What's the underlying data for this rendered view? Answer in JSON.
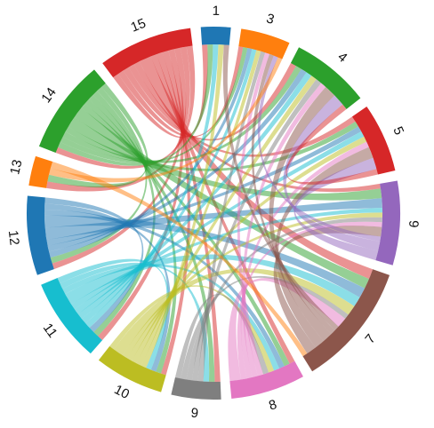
{
  "chart_data": {
    "type": "chord",
    "segments": [
      {
        "label": "1",
        "color": "#1f77b4",
        "value": 6
      },
      {
        "label": "3",
        "color": "#ff7f0e",
        "value": 10
      },
      {
        "label": "4",
        "color": "#2ca02c",
        "value": 16
      },
      {
        "label": "5",
        "color": "#d62728",
        "value": 14
      },
      {
        "label": "6",
        "color": "#9467bd",
        "value": 17
      },
      {
        "label": "7",
        "color": "#8c564b",
        "value": 25
      },
      {
        "label": "8",
        "color": "#e377c2",
        "value": 15
      },
      {
        "label": "9",
        "color": "#7f7f7f",
        "value": 10
      },
      {
        "label": "10",
        "color": "#bcbd22",
        "value": 14
      },
      {
        "label": "11",
        "color": "#17becf",
        "value": 17
      },
      {
        "label": "12",
        "color": "#1f77b4",
        "value": 16
      },
      {
        "label": "13",
        "color": "#ff7f0e",
        "value": 6
      },
      {
        "label": "14",
        "color": "#2ca02c",
        "value": 19
      },
      {
        "label": "15",
        "color": "#d62728",
        "value": 19
      }
    ],
    "links": [
      [
        "15",
        "1",
        1
      ],
      [
        "15",
        "3",
        1
      ],
      [
        "15",
        "4",
        1
      ],
      [
        "15",
        "5",
        1
      ],
      [
        "15",
        "6",
        1
      ],
      [
        "15",
        "7",
        2
      ],
      [
        "15",
        "8",
        1
      ],
      [
        "15",
        "9",
        1
      ],
      [
        "15",
        "10",
        1
      ],
      [
        "15",
        "11",
        1
      ],
      [
        "15",
        "12",
        1
      ],
      [
        "15",
        "13",
        1
      ],
      [
        "15",
        "14",
        1
      ],
      [
        "14",
        "1",
        1
      ],
      [
        "14",
        "3",
        1
      ],
      [
        "14",
        "4",
        1
      ],
      [
        "14",
        "5",
        1
      ],
      [
        "14",
        "6",
        2
      ],
      [
        "14",
        "7",
        2
      ],
      [
        "14",
        "8",
        1
      ],
      [
        "14",
        "9",
        1
      ],
      [
        "14",
        "10",
        1
      ],
      [
        "14",
        "11",
        1
      ],
      [
        "14",
        "12",
        1
      ],
      [
        "14",
        "13",
        1
      ],
      [
        "12",
        "3",
        1
      ],
      [
        "12",
        "4",
        1
      ],
      [
        "12",
        "5",
        1
      ],
      [
        "12",
        "6",
        2
      ],
      [
        "12",
        "7",
        2
      ],
      [
        "12",
        "8",
        1
      ],
      [
        "12",
        "10",
        1
      ],
      [
        "12",
        "11",
        1
      ],
      [
        "11",
        "1",
        1
      ],
      [
        "11",
        "3",
        1
      ],
      [
        "11",
        "4",
        1
      ],
      [
        "11",
        "5",
        1
      ],
      [
        "11",
        "6",
        1
      ],
      [
        "11",
        "7",
        2
      ],
      [
        "11",
        "8",
        1
      ],
      [
        "11",
        "9",
        1
      ],
      [
        "11",
        "10",
        1
      ],
      [
        "10",
        "1",
        1
      ],
      [
        "10",
        "3",
        1
      ],
      [
        "10",
        "4",
        1
      ],
      [
        "10",
        "5",
        1
      ],
      [
        "10",
        "6",
        1
      ],
      [
        "10",
        "7",
        2
      ],
      [
        "10",
        "8",
        1
      ],
      [
        "9",
        "3",
        1
      ],
      [
        "9",
        "4",
        1
      ],
      [
        "9",
        "6",
        1
      ],
      [
        "9",
        "7",
        1
      ],
      [
        "9",
        "8",
        1
      ],
      [
        "8",
        "3",
        1
      ],
      [
        "8",
        "4",
        1
      ],
      [
        "8",
        "5",
        1
      ],
      [
        "8",
        "6",
        1
      ],
      [
        "8",
        "7",
        2
      ],
      [
        "7",
        "1",
        1
      ],
      [
        "7",
        "3",
        1
      ],
      [
        "7",
        "4",
        2
      ],
      [
        "7",
        "5",
        2
      ],
      [
        "7",
        "6",
        2
      ],
      [
        "6",
        "3",
        1
      ],
      [
        "6",
        "4",
        2
      ],
      [
        "6",
        "5",
        2
      ],
      [
        "5",
        "4",
        1
      ],
      [
        "13",
        "3",
        1
      ],
      [
        "13",
        "7",
        1
      ]
    ]
  }
}
